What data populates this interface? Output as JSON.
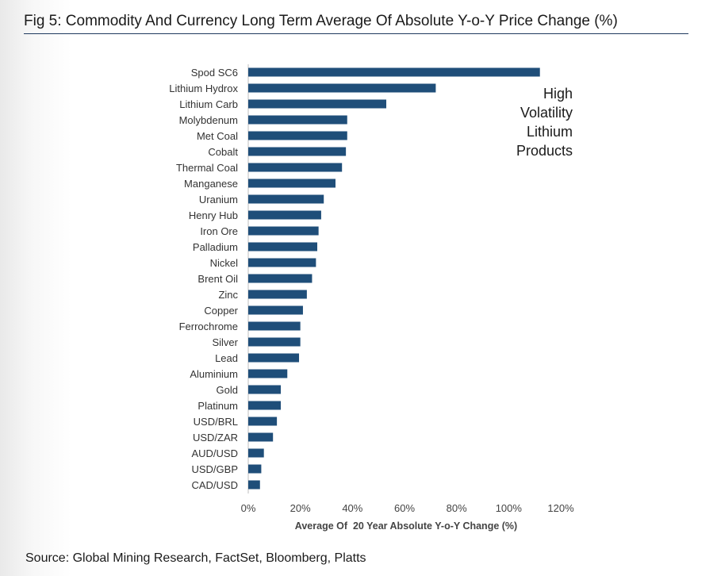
{
  "figure": {
    "title": "Fig 5: Commodity And Currency Long Term Average Of Absolute Y-o-Y Price Change (%)",
    "source": "Source: Global Mining Research, FactSet, Bloomberg, Platts"
  },
  "chart_data": {
    "type": "bar",
    "orientation": "horizontal",
    "categories": [
      "Spod SC6",
      "Lithium Hydrox",
      "Lithium Carb",
      "Molybdenum",
      "Met Coal",
      "Cobalt",
      "Thermal Coal",
      "Manganese",
      "Uranium",
      "Henry Hub",
      "Iron Ore",
      "Palladium",
      "Nickel",
      "Brent Oil",
      "Zinc",
      "Copper",
      "Ferrochrome",
      "Silver",
      "Lead",
      "Aluminium",
      "Gold",
      "Platinum",
      "USD/BRL",
      "USD/ZAR",
      "AUD/USD",
      "USD/GBP",
      "CAD/USD"
    ],
    "values": [
      112,
      72,
      53,
      38,
      38,
      37.5,
      36,
      33.5,
      29,
      28,
      27,
      26.5,
      26,
      24.5,
      22.5,
      21,
      20,
      20,
      19.5,
      15,
      12.5,
      12.5,
      11,
      9.5,
      6,
      5,
      4.5
    ],
    "unit": "%",
    "xlabel": "Average Of  20 Year Absolute Y-o-Y Change (%)",
    "xlim": [
      0,
      120
    ],
    "xticks": [
      0,
      20,
      40,
      60,
      80,
      100,
      120
    ],
    "xtick_labels": [
      "0%",
      "20%",
      "40%",
      "60%",
      "80%",
      "100%",
      "120%"
    ],
    "grid": false,
    "bar_color": "#1f4e79",
    "annotation": {
      "lines": [
        "High",
        "Volatility",
        "Lithium",
        "Products"
      ]
    }
  }
}
